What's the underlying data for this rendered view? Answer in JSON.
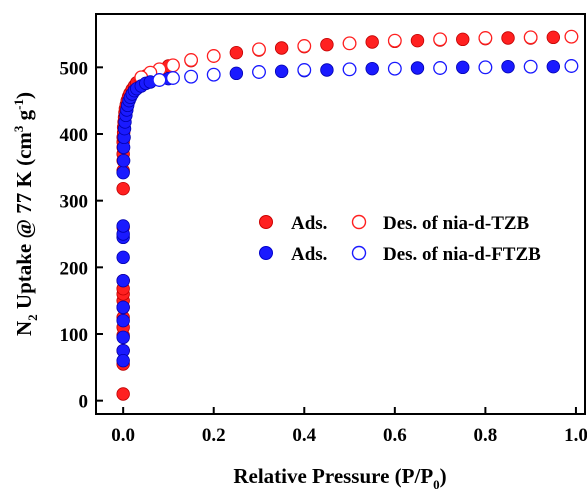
{
  "chart_data": {
    "type": "scatter",
    "xlabel": "Relative Pressure (P/P",
    "xlabel_sub": "0",
    "xlabel_end": ")",
    "ylabel_parts": {
      "pre": "N",
      "sub1": "2",
      "mid": " Uptake @ 77 K (cm",
      "sup1": "3",
      "mid2": " g",
      "sup2": "-1",
      "end": ")"
    },
    "xlim": [
      -0.06,
      1.02
    ],
    "ylim": [
      -20,
      580
    ],
    "xticks": [
      "0.0",
      "0.2",
      "0.4",
      "0.6",
      "0.8",
      "1.0"
    ],
    "xtick_values": [
      0.0,
      0.2,
      0.4,
      0.6,
      0.8,
      1.0
    ],
    "yticks": [
      "0",
      "100",
      "200",
      "300",
      "400",
      "500"
    ],
    "ytick_values": [
      0,
      100,
      200,
      300,
      400,
      500
    ],
    "legend_position": "center-right",
    "legend": {
      "row1_ads": "Ads.",
      "row1_des": "Des. of nia-d-TZB",
      "row2_ads": "Ads.",
      "row2_des": "Des. of nia-d-FTZB"
    },
    "series": [
      {
        "name": "Ads. of nia-d-TZB",
        "color": "#ff2020",
        "filled": true,
        "points": [
          [
            0.0,
            10
          ],
          [
            0.0,
            55
          ],
          [
            0.0,
            75
          ],
          [
            0.0,
            98
          ],
          [
            0.0,
            110
          ],
          [
            0.0,
            125
          ],
          [
            0.0,
            140
          ],
          [
            0.0,
            150
          ],
          [
            0.0,
            160
          ],
          [
            0.0,
            168
          ],
          [
            0.0,
            180
          ],
          [
            0.0,
            260
          ],
          [
            0.0,
            318
          ],
          [
            0.0,
            345
          ],
          [
            0.0,
            360
          ],
          [
            0.0,
            370
          ],
          [
            0.0,
            380
          ],
          [
            0.0,
            388
          ],
          [
            0.0,
            395
          ],
          [
            0.001,
            402
          ],
          [
            0.001,
            410
          ],
          [
            0.002,
            418
          ],
          [
            0.003,
            425
          ],
          [
            0.004,
            432
          ],
          [
            0.005,
            438
          ],
          [
            0.007,
            444
          ],
          [
            0.009,
            450
          ],
          [
            0.012,
            456
          ],
          [
            0.015,
            461
          ],
          [
            0.02,
            467
          ],
          [
            0.025,
            472
          ],
          [
            0.03,
            477
          ],
          [
            0.04,
            482
          ],
          [
            0.05,
            487
          ],
          [
            0.06,
            491
          ],
          [
            0.08,
            496
          ],
          [
            0.1,
            502
          ],
          [
            0.15,
            510
          ],
          [
            0.2,
            517
          ],
          [
            0.25,
            522
          ],
          [
            0.3,
            526
          ],
          [
            0.35,
            529
          ],
          [
            0.4,
            531
          ],
          [
            0.45,
            534
          ],
          [
            0.5,
            536
          ],
          [
            0.55,
            538
          ],
          [
            0.6,
            539
          ],
          [
            0.65,
            540
          ],
          [
            0.7,
            541
          ],
          [
            0.75,
            542
          ],
          [
            0.8,
            543
          ],
          [
            0.85,
            544
          ],
          [
            0.9,
            544
          ],
          [
            0.95,
            545
          ],
          [
            0.99,
            546
          ]
        ]
      },
      {
        "name": "Des. of nia-d-TZB",
        "color": "#ff2020",
        "filled": false,
        "points": [
          [
            0.99,
            546
          ],
          [
            0.9,
            545
          ],
          [
            0.8,
            544
          ],
          [
            0.7,
            542
          ],
          [
            0.6,
            540
          ],
          [
            0.5,
            536
          ],
          [
            0.4,
            532
          ],
          [
            0.3,
            527
          ],
          [
            0.2,
            517
          ],
          [
            0.15,
            511
          ],
          [
            0.11,
            503
          ],
          [
            0.08,
            497
          ],
          [
            0.06,
            492
          ],
          [
            0.04,
            485
          ]
        ]
      },
      {
        "name": "Ads. of nia-d-FTZB",
        "color": "#1a1aff",
        "filled": true,
        "points": [
          [
            0.0,
            245
          ],
          [
            0.0,
            250
          ],
          [
            0.0,
            262
          ],
          [
            0.0,
            342
          ],
          [
            0.0,
            215
          ],
          [
            0.0,
            180
          ],
          [
            0.0,
            140
          ],
          [
            0.0,
            120
          ],
          [
            0.0,
            95
          ],
          [
            0.0,
            75
          ],
          [
            0.0,
            60
          ],
          [
            0.001,
            360
          ],
          [
            0.001,
            380
          ],
          [
            0.002,
            395
          ],
          [
            0.003,
            408
          ],
          [
            0.004,
            418
          ],
          [
            0.006,
            428
          ],
          [
            0.008,
            436
          ],
          [
            0.01,
            443
          ],
          [
            0.013,
            450
          ],
          [
            0.016,
            455
          ],
          [
            0.02,
            460
          ],
          [
            0.025,
            465
          ],
          [
            0.03,
            468
          ],
          [
            0.04,
            472
          ],
          [
            0.05,
            476
          ],
          [
            0.06,
            478
          ],
          [
            0.08,
            481
          ],
          [
            0.1,
            483
          ],
          [
            0.15,
            486
          ],
          [
            0.2,
            489
          ],
          [
            0.25,
            491
          ],
          [
            0.3,
            493
          ],
          [
            0.35,
            494
          ],
          [
            0.4,
            495
          ],
          [
            0.45,
            496
          ],
          [
            0.5,
            497
          ],
          [
            0.55,
            498
          ],
          [
            0.6,
            498
          ],
          [
            0.65,
            499
          ],
          [
            0.7,
            499
          ],
          [
            0.75,
            500
          ],
          [
            0.8,
            500
          ],
          [
            0.85,
            501
          ],
          [
            0.9,
            501
          ],
          [
            0.95,
            501
          ],
          [
            0.99,
            502
          ]
        ]
      },
      {
        "name": "Des. of nia-d-FTZB",
        "color": "#1a1aff",
        "filled": false,
        "points": [
          [
            0.99,
            502
          ],
          [
            0.9,
            501
          ],
          [
            0.8,
            500
          ],
          [
            0.7,
            499
          ],
          [
            0.6,
            498
          ],
          [
            0.5,
            497
          ],
          [
            0.4,
            496
          ],
          [
            0.3,
            493
          ],
          [
            0.2,
            489
          ],
          [
            0.15,
            486
          ],
          [
            0.11,
            484
          ],
          [
            0.08,
            481
          ]
        ]
      }
    ]
  }
}
